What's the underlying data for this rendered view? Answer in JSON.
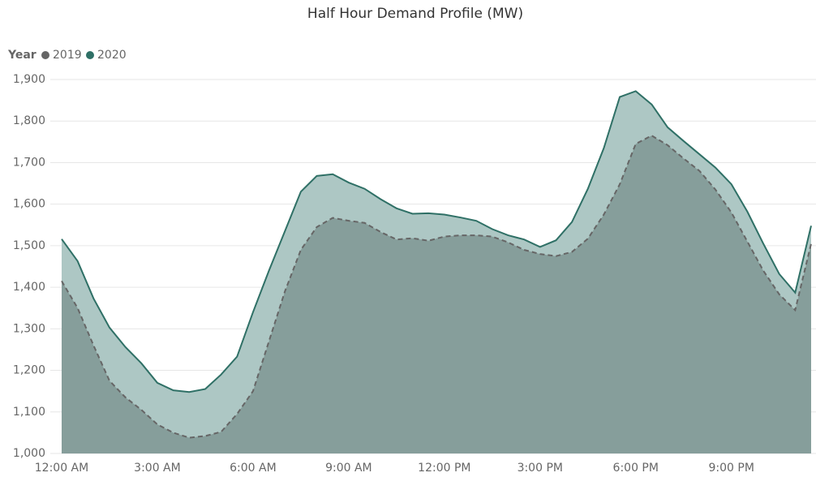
{
  "chart_data": {
    "type": "area",
    "title": "Half Hour Demand Profile (MW)",
    "legend_title": "Year",
    "categories": [
      "12:00 AM",
      null,
      null,
      null,
      null,
      null,
      "3:00 AM",
      null,
      null,
      null,
      null,
      null,
      "6:00 AM",
      null,
      null,
      null,
      null,
      null,
      "9:00 AM",
      null,
      null,
      null,
      null,
      null,
      "12:00 PM",
      null,
      null,
      null,
      null,
      null,
      "3:00 PM",
      null,
      null,
      null,
      null,
      null,
      "6:00 PM",
      null,
      null,
      null,
      null,
      null,
      "9:00 PM",
      null,
      null,
      null,
      null,
      null
    ],
    "series": [
      {
        "name": "2019",
        "color": "#666666",
        "fill": "#869e9b",
        "dashed": true,
        "values": [
          1415,
          1350,
          1260,
          1175,
          1135,
          1105,
          1070,
          1050,
          1038,
          1042,
          1052,
          1095,
          1150,
          1270,
          1390,
          1490,
          1545,
          1567,
          1560,
          1555,
          1533,
          1515,
          1518,
          1512,
          1522,
          1525,
          1525,
          1522,
          1508,
          1490,
          1480,
          1475,
          1485,
          1517,
          1575,
          1648,
          1745,
          1765,
          1742,
          1710,
          1680,
          1635,
          1580,
          1510,
          1440,
          1383,
          1345,
          1505
        ]
      },
      {
        "name": "2020",
        "color": "#2f7066",
        "fill": "#adc7c4",
        "dashed": false,
        "values": [
          1516,
          1463,
          1373,
          1303,
          1256,
          1217,
          1170,
          1152,
          1148,
          1155,
          1190,
          1233,
          1340,
          1440,
          1535,
          1630,
          1668,
          1672,
          1652,
          1637,
          1612,
          1590,
          1577,
          1578,
          1575,
          1568,
          1560,
          1540,
          1525,
          1515,
          1497,
          1513,
          1557,
          1637,
          1735,
          1858,
          1872,
          1840,
          1785,
          1752,
          1720,
          1688,
          1648,
          1582,
          1505,
          1432,
          1387,
          1548
        ]
      }
    ],
    "ylim": [
      1000,
      1900
    ],
    "yticks": [
      {
        "value": 1000,
        "label": "1,000"
      },
      {
        "value": 1100,
        "label": "1,100"
      },
      {
        "value": 1200,
        "label": "1,200"
      },
      {
        "value": 1300,
        "label": "1,300"
      },
      {
        "value": 1400,
        "label": "1,400"
      },
      {
        "value": 1500,
        "label": "1,500"
      },
      {
        "value": 1600,
        "label": "1,600"
      },
      {
        "value": 1700,
        "label": "1,700"
      },
      {
        "value": 1800,
        "label": "1,800"
      },
      {
        "value": 1900,
        "label": "1,900"
      }
    ],
    "grid": true
  }
}
